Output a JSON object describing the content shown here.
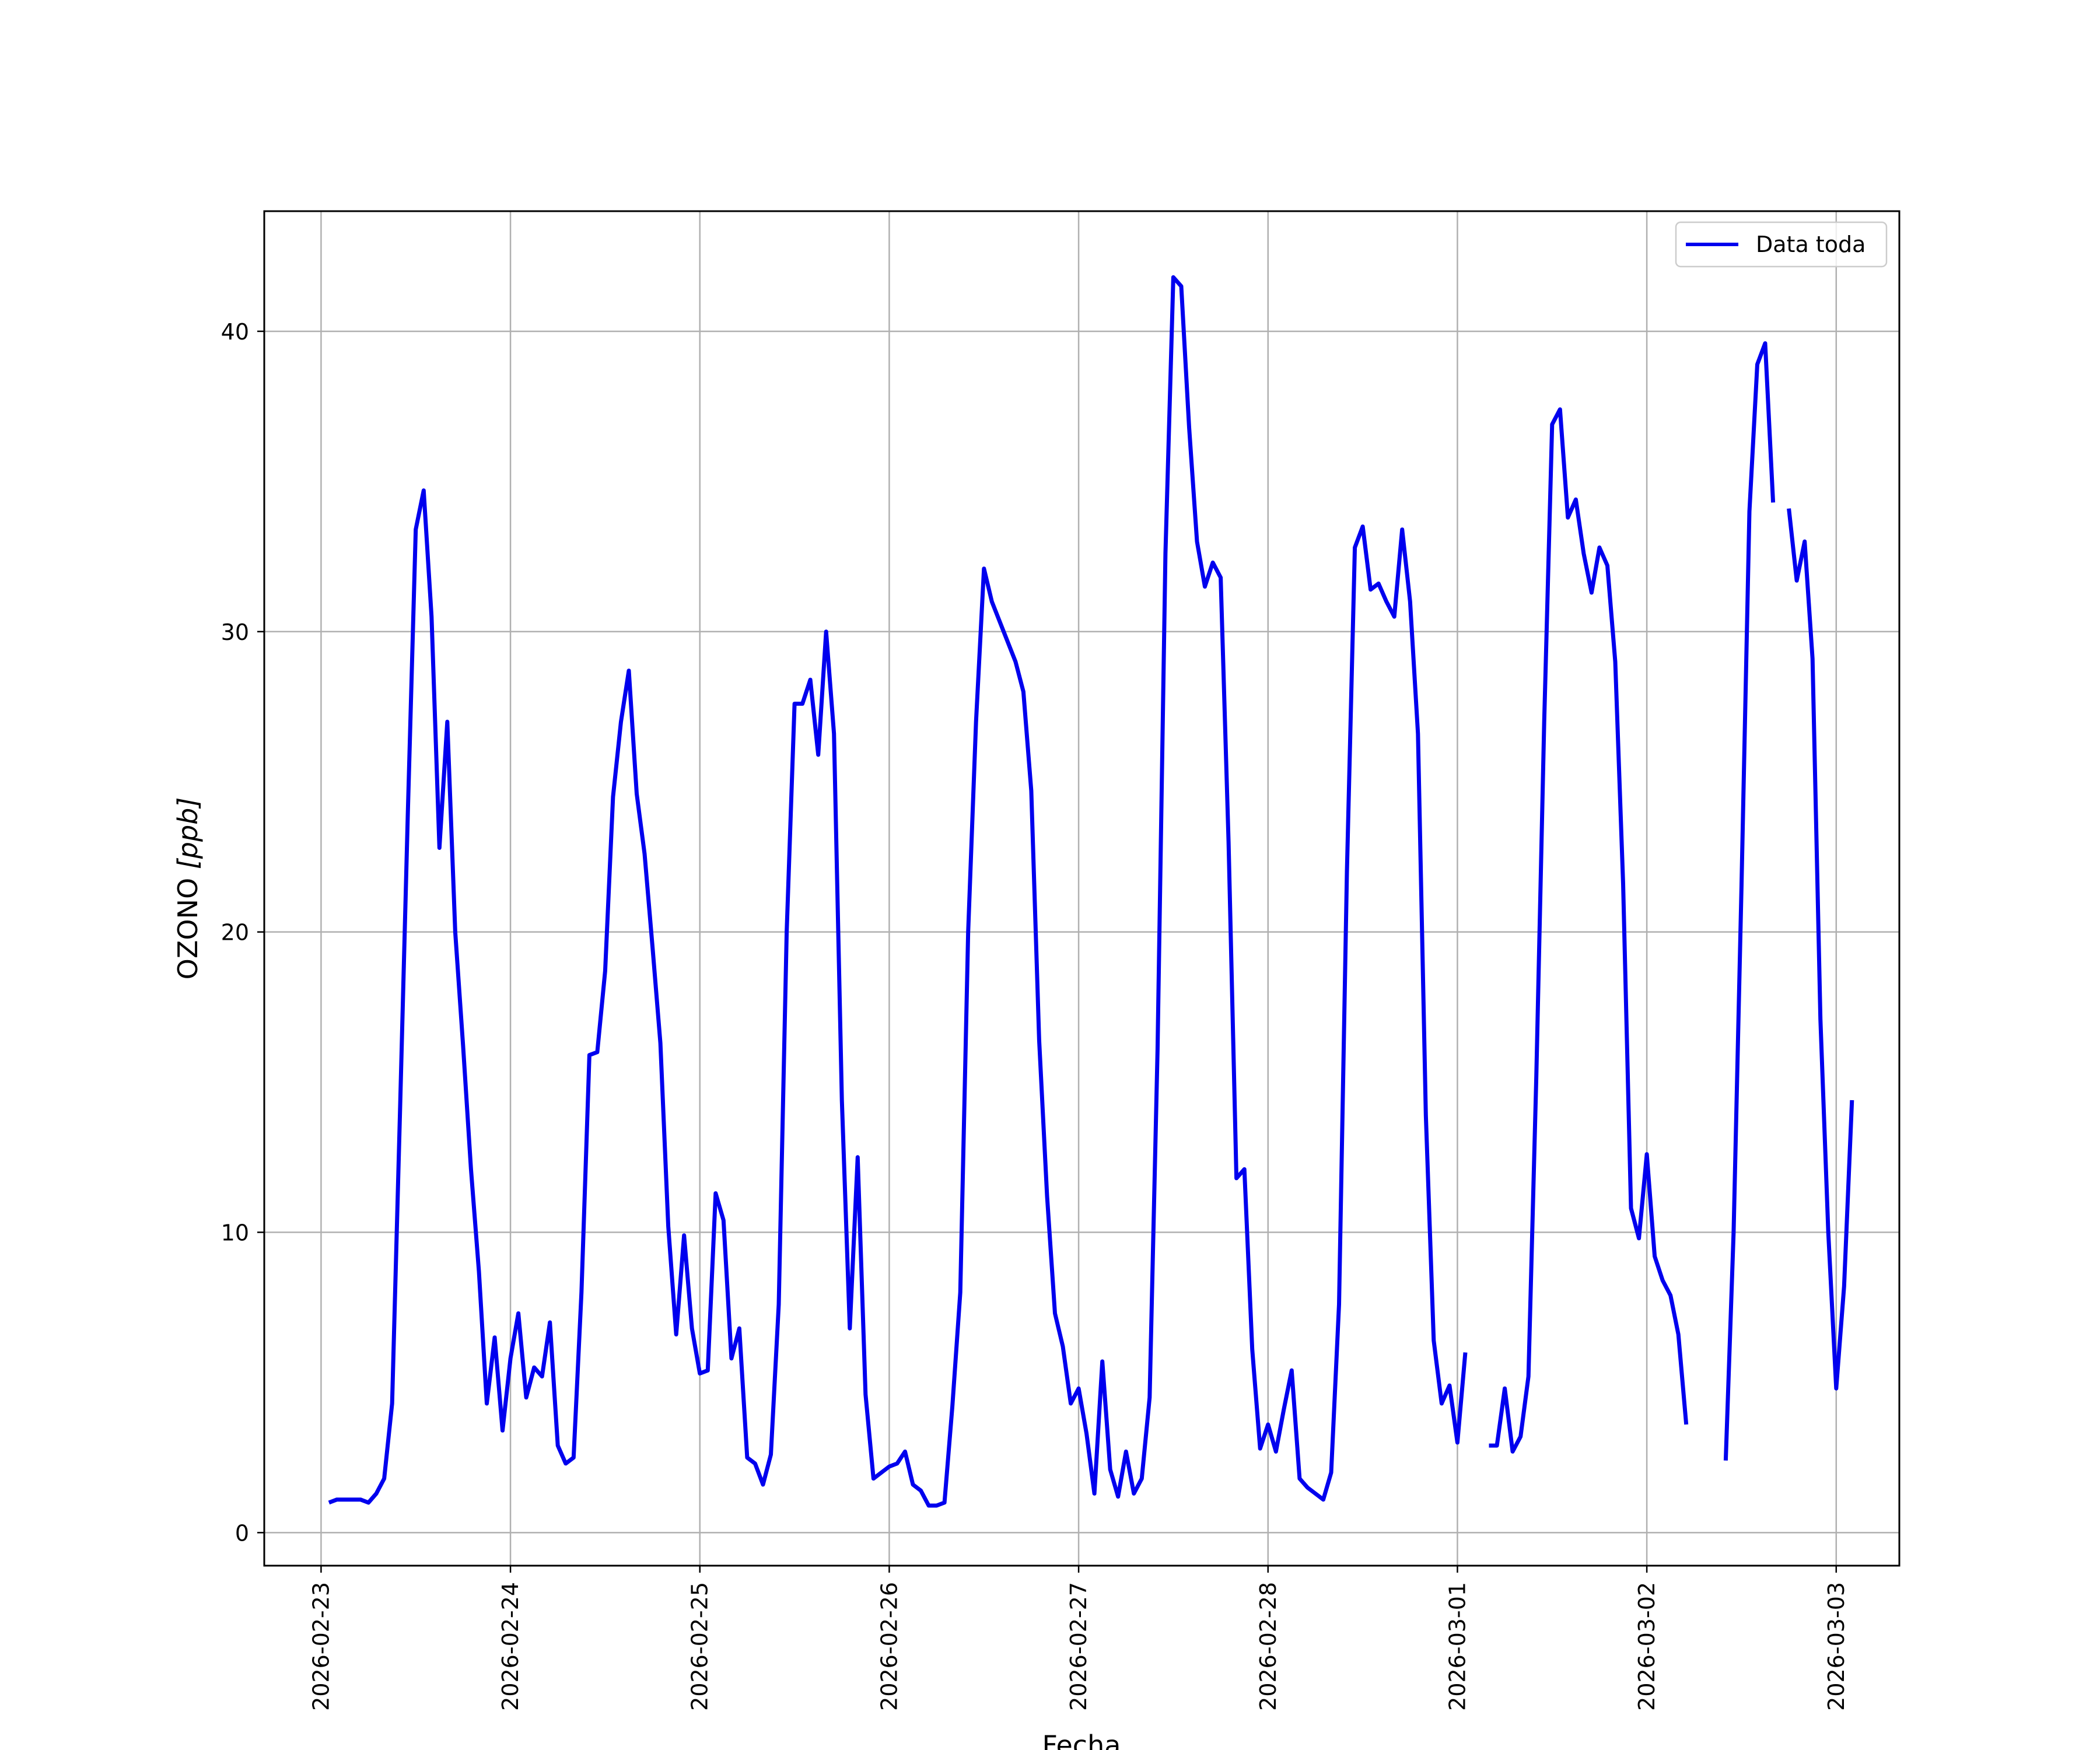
{
  "chart_data": {
    "type": "line",
    "title": "",
    "xlabel": "Fecha",
    "ylabel_main": "OZONO ",
    "ylabel_unit": "[ppb]",
    "xlim": [
      "2026-02-22T16:48",
      "2026-03-03T08:00"
    ],
    "ylim": [
      -1.1,
      44.0
    ],
    "yticks": [
      0,
      10,
      20,
      30,
      40
    ],
    "ytick_labels": [
      "0",
      "10",
      "20",
      "30",
      "40"
    ],
    "xticks": [
      "2026-02-23T00:00",
      "2026-02-24T00:00",
      "2026-02-25T00:00",
      "2026-02-26T00:00",
      "2026-02-27T00:00",
      "2026-02-28T00:00",
      "2026-03-01T00:00",
      "2026-03-02T00:00",
      "2026-03-03T00:00"
    ],
    "xtick_labels": [
      "2026-02-23",
      "2026-02-24",
      "2026-02-25",
      "2026-02-26",
      "2026-02-27",
      "2026-02-28",
      "2026-03-01",
      "2026-03-02",
      "2026-03-03"
    ],
    "grid": true,
    "legend_position": "top-right",
    "series": [
      {
        "name": "Data toda",
        "color": "#0000ee",
        "segments": [
          [
            [
              "2026-02-23T01:00",
              1.0
            ],
            [
              "2026-02-23T02:00",
              1.1
            ],
            [
              "2026-02-23T03:00",
              1.1
            ],
            [
              "2026-02-23T04:00",
              1.1
            ],
            [
              "2026-02-23T05:00",
              1.1
            ],
            [
              "2026-02-23T06:00",
              1.0
            ],
            [
              "2026-02-23T07:00",
              1.3
            ],
            [
              "2026-02-23T08:00",
              1.8
            ],
            [
              "2026-02-23T09:00",
              4.3
            ],
            [
              "2026-02-23T10:00",
              14.0
            ],
            [
              "2026-02-23T11:00",
              24.0
            ],
            [
              "2026-02-23T12:00",
              33.4
            ],
            [
              "2026-02-23T13:00",
              34.7
            ],
            [
              "2026-02-23T14:00",
              30.5
            ],
            [
              "2026-02-23T15:00",
              22.8
            ],
            [
              "2026-02-23T16:00",
              27.0
            ],
            [
              "2026-02-23T17:00",
              20.0
            ],
            [
              "2026-02-23T18:00",
              16.2
            ],
            [
              "2026-02-23T19:00",
              12.1
            ],
            [
              "2026-02-23T20:00",
              8.7
            ],
            [
              "2026-02-23T21:00",
              4.3
            ],
            [
              "2026-02-23T22:00",
              6.5
            ],
            [
              "2026-02-23T23:00",
              3.4
            ],
            [
              "2026-02-24T00:00",
              5.8
            ],
            [
              "2026-02-24T01:00",
              7.3
            ],
            [
              "2026-02-24T02:00",
              4.5
            ],
            [
              "2026-02-24T03:00",
              5.5
            ],
            [
              "2026-02-24T04:00",
              5.2
            ],
            [
              "2026-02-24T05:00",
              7.0
            ],
            [
              "2026-02-24T06:00",
              2.9
            ],
            [
              "2026-02-24T07:00",
              2.3
            ],
            [
              "2026-02-24T08:00",
              2.5
            ],
            [
              "2026-02-24T09:00",
              8.0
            ],
            [
              "2026-02-24T10:00",
              15.9
            ],
            [
              "2026-02-24T11:00",
              16.0
            ],
            [
              "2026-02-24T12:00",
              18.7
            ],
            [
              "2026-02-24T13:00",
              24.5
            ],
            [
              "2026-02-24T14:00",
              27.0
            ],
            [
              "2026-02-24T15:00",
              28.7
            ],
            [
              "2026-02-24T16:00",
              24.6
            ],
            [
              "2026-02-24T17:00",
              22.6
            ],
            [
              "2026-02-24T18:00",
              19.5
            ],
            [
              "2026-02-24T19:00",
              16.3
            ],
            [
              "2026-02-24T20:00",
              10.2
            ],
            [
              "2026-02-24T21:00",
              6.6
            ],
            [
              "2026-02-24T22:00",
              9.9
            ],
            [
              "2026-02-24T23:00",
              6.8
            ],
            [
              "2026-02-25T00:00",
              5.3
            ],
            [
              "2026-02-25T01:00",
              5.4
            ],
            [
              "2026-02-25T02:00",
              11.3
            ],
            [
              "2026-02-25T03:00",
              10.4
            ],
            [
              "2026-02-25T04:00",
              5.8
            ],
            [
              "2026-02-25T05:00",
              6.8
            ],
            [
              "2026-02-25T06:00",
              2.5
            ],
            [
              "2026-02-25T07:00",
              2.3
            ],
            [
              "2026-02-25T08:00",
              1.6
            ],
            [
              "2026-02-25T09:00",
              2.6
            ],
            [
              "2026-02-25T10:00",
              7.6
            ],
            [
              "2026-02-25T11:00",
              20.0
            ],
            [
              "2026-02-25T12:00",
              27.6
            ],
            [
              "2026-02-25T13:00",
              27.6
            ],
            [
              "2026-02-25T14:00",
              28.4
            ],
            [
              "2026-02-25T15:00",
              25.9
            ],
            [
              "2026-02-25T16:00",
              30.0
            ],
            [
              "2026-02-25T17:00",
              26.6
            ],
            [
              "2026-02-25T18:00",
              14.4
            ],
            [
              "2026-02-25T19:00",
              6.8
            ],
            [
              "2026-02-25T20:00",
              12.5
            ],
            [
              "2026-02-25T21:00",
              4.6
            ],
            [
              "2026-02-25T22:00",
              1.8
            ],
            [
              "2026-02-25T23:00",
              2.0
            ],
            [
              "2026-02-26T00:00",
              2.2
            ],
            [
              "2026-02-26T01:00",
              2.3
            ],
            [
              "2026-02-26T02:00",
              2.7
            ],
            [
              "2026-02-26T03:00",
              1.6
            ],
            [
              "2026-02-26T04:00",
              1.4
            ],
            [
              "2026-02-26T05:00",
              0.9
            ],
            [
              "2026-02-26T06:00",
              0.9
            ],
            [
              "2026-02-26T07:00",
              1.0
            ],
            [
              "2026-02-26T08:00",
              4.2
            ],
            [
              "2026-02-26T09:00",
              8.0
            ],
            [
              "2026-02-26T10:00",
              20.0
            ],
            [
              "2026-02-26T11:00",
              27.0
            ],
            [
              "2026-02-26T12:00",
              32.1
            ],
            [
              "2026-02-26T13:00",
              31.0
            ],
            [
              "2026-02-26T16:00",
              29.0
            ],
            [
              "2026-02-26T17:00",
              28.0
            ],
            [
              "2026-02-26T18:00",
              24.7
            ],
            [
              "2026-02-26T19:00",
              16.4
            ],
            [
              "2026-02-26T20:00",
              11.2
            ],
            [
              "2026-02-26T21:00",
              7.3
            ],
            [
              "2026-02-26T22:00",
              6.2
            ],
            [
              "2026-02-26T23:00",
              4.3
            ],
            [
              "2026-02-27T00:00",
              4.8
            ],
            [
              "2026-02-27T01:00",
              3.3
            ],
            [
              "2026-02-27T02:00",
              1.3
            ],
            [
              "2026-02-27T03:00",
              5.7
            ],
            [
              "2026-02-27T04:00",
              2.1
            ],
            [
              "2026-02-27T05:00",
              1.2
            ],
            [
              "2026-02-27T06:00",
              2.7
            ],
            [
              "2026-02-27T07:00",
              1.3
            ],
            [
              "2026-02-27T08:00",
              1.8
            ],
            [
              "2026-02-27T09:00",
              4.5
            ],
            [
              "2026-02-27T10:00",
              16.1
            ],
            [
              "2026-02-27T11:00",
              32.6
            ],
            [
              "2026-02-27T12:00",
              41.8
            ],
            [
              "2026-02-27T13:00",
              41.5
            ],
            [
              "2026-02-27T14:00",
              36.8
            ],
            [
              "2026-02-27T15:00",
              33.0
            ],
            [
              "2026-02-27T16:00",
              31.5
            ],
            [
              "2026-02-27T17:00",
              32.3
            ],
            [
              "2026-02-27T18:00",
              31.8
            ],
            [
              "2026-02-27T19:00",
              23.0
            ],
            [
              "2026-02-27T20:00",
              11.8
            ],
            [
              "2026-02-27T21:00",
              12.1
            ],
            [
              "2026-02-27T22:00",
              6.1
            ],
            [
              "2026-02-27T23:00",
              2.8
            ],
            [
              "2026-02-28T00:00",
              3.6
            ],
            [
              "2026-02-28T01:00",
              2.7
            ],
            [
              "2026-02-28T02:00",
              4.1
            ],
            [
              "2026-02-28T03:00",
              5.4
            ],
            [
              "2026-02-28T04:00",
              1.8
            ],
            [
              "2026-02-28T05:00",
              1.5
            ],
            [
              "2026-02-28T06:00",
              1.3
            ],
            [
              "2026-02-28T07:00",
              1.1
            ],
            [
              "2026-02-28T08:00",
              2.0
            ],
            [
              "2026-02-28T09:00",
              7.6
            ],
            [
              "2026-02-28T10:00",
              22.0
            ],
            [
              "2026-02-28T11:00",
              32.8
            ],
            [
              "2026-02-28T12:00",
              33.5
            ],
            [
              "2026-02-28T13:00",
              31.4
            ],
            [
              "2026-02-28T14:00",
              31.6
            ],
            [
              "2026-02-28T15:00",
              31.0
            ],
            [
              "2026-02-28T16:00",
              30.5
            ],
            [
              "2026-02-28T17:00",
              33.4
            ],
            [
              "2026-02-28T18:00",
              31.0
            ],
            [
              "2026-02-28T19:00",
              26.6
            ],
            [
              "2026-02-28T20:00",
              13.9
            ],
            [
              "2026-02-28T21:00",
              6.4
            ],
            [
              "2026-02-28T22:00",
              4.3
            ],
            [
              "2026-02-28T23:00",
              4.9
            ],
            [
              "2026-03-01T00:00",
              3.0
            ],
            [
              "2026-03-01T01:00",
              6.0
            ]
          ],
          [
            [
              "2026-03-01T04:00",
              2.9
            ],
            [
              "2026-03-01T05:00",
              2.9
            ],
            [
              "2026-03-01T06:00",
              4.8
            ],
            [
              "2026-03-01T07:00",
              2.7
            ],
            [
              "2026-03-01T08:00",
              3.2
            ],
            [
              "2026-03-01T09:00",
              5.2
            ],
            [
              "2026-03-01T10:00",
              15.2
            ],
            [
              "2026-03-01T11:00",
              27.0
            ],
            [
              "2026-03-01T12:00",
              36.9
            ],
            [
              "2026-03-01T13:00",
              37.4
            ],
            [
              "2026-03-01T14:00",
              33.8
            ],
            [
              "2026-03-01T15:00",
              34.4
            ],
            [
              "2026-03-01T16:00",
              32.6
            ],
            [
              "2026-03-01T17:00",
              31.3
            ],
            [
              "2026-03-01T18:00",
              32.8
            ],
            [
              "2026-03-01T19:00",
              32.2
            ],
            [
              "2026-03-01T20:00",
              29.0
            ],
            [
              "2026-03-01T21:00",
              21.6
            ],
            [
              "2026-03-01T22:00",
              10.8
            ],
            [
              "2026-03-01T23:00",
              9.8
            ],
            [
              "2026-03-02T00:00",
              12.6
            ],
            [
              "2026-03-02T01:00",
              9.2
            ],
            [
              "2026-03-02T02:00",
              8.4
            ],
            [
              "2026-03-02T03:00",
              7.9
            ],
            [
              "2026-03-02T04:00",
              6.6
            ],
            [
              "2026-03-02T05:00",
              3.6
            ]
          ],
          [
            [
              "2026-03-02T10:00",
              2.4
            ],
            [
              "2026-03-02T11:00",
              10.0
            ],
            [
              "2026-03-02T12:00",
              21.5
            ],
            [
              "2026-03-02T13:00",
              34.0
            ],
            [
              "2026-03-02T14:00",
              38.9
            ],
            [
              "2026-03-02T15:00",
              39.6
            ],
            [
              "2026-03-02T16:00",
              34.3
            ]
          ],
          [
            [
              "2026-03-02T18:00",
              34.1
            ],
            [
              "2026-03-02T19:00",
              31.7
            ],
            [
              "2026-03-02T20:00",
              33.0
            ],
            [
              "2026-03-02T21:00",
              29.1
            ],
            [
              "2026-03-02T22:00",
              17.1
            ],
            [
              "2026-03-02T23:00",
              10.0
            ],
            [
              "2026-03-03T00:00",
              4.8
            ],
            [
              "2026-03-03T01:00",
              8.2
            ],
            [
              "2026-03-03T02:00",
              14.4
            ]
          ]
        ]
      }
    ]
  }
}
